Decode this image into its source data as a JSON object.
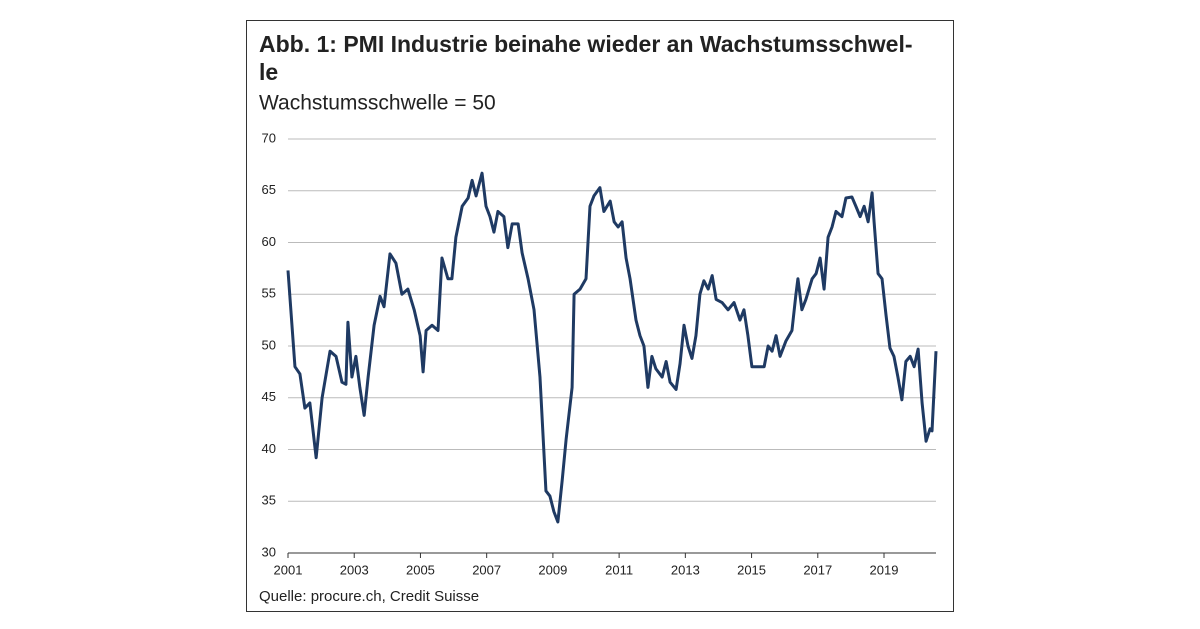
{
  "chart_data": {
    "type": "line",
    "title_lines": [
      "Abb. 1: PMI Industrie beinahe wieder an Wachstumsschwel-",
      "le"
    ],
    "subtitle": "Wachstumsschwelle = 50",
    "source": "Quelle: procure.ch, Credit Suisse",
    "xlim": [
      2001,
      2020.57
    ],
    "xticks": [
      2001,
      2003,
      2005,
      2007,
      2009,
      2011,
      2013,
      2015,
      2017,
      2019
    ],
    "ylim": [
      30,
      70
    ],
    "yticks": [
      30,
      35,
      40,
      45,
      50,
      55,
      60,
      65,
      70
    ],
    "grid": true,
    "series": [
      {
        "color": "#1f3a63",
        "x": [
          2001.0,
          2001.21,
          2001.36,
          2001.51,
          2001.66,
          2001.85,
          2002.03,
          2002.27,
          2002.45,
          2002.63,
          2002.75,
          2002.81,
          2002.93,
          2003.05,
          2003.17,
          2003.3,
          2003.42,
          2003.6,
          2003.78,
          2003.9,
          2004.08,
          2004.26,
          2004.44,
          2004.62,
          2004.81,
          2004.99,
          2005.08,
          2005.17,
          2005.35,
          2005.53,
          2005.65,
          2005.83,
          2005.95,
          2006.07,
          2006.26,
          2006.44,
          2006.56,
          2006.68,
          2006.86,
          2006.98,
          2007.1,
          2007.22,
          2007.34,
          2007.52,
          2007.64,
          2007.77,
          2007.95,
          2008.07,
          2008.25,
          2008.43,
          2008.61,
          2008.79,
          2008.91,
          2009.03,
          2009.15,
          2009.28,
          2009.4,
          2009.58,
          2009.64,
          2009.82,
          2010.0,
          2010.12,
          2010.24,
          2010.42,
          2010.54,
          2010.73,
          2010.85,
          2010.97,
          2011.09,
          2011.21,
          2011.33,
          2011.51,
          2011.63,
          2011.75,
          2011.87,
          2011.99,
          2012.11,
          2012.3,
          2012.42,
          2012.54,
          2012.72,
          2012.84,
          2012.96,
          2013.08,
          2013.2,
          2013.32,
          2013.44,
          2013.56,
          2013.69,
          2013.81,
          2013.93,
          2014.11,
          2014.29,
          2014.47,
          2014.65,
          2014.77,
          2014.89,
          2015.01,
          2015.2,
          2015.38,
          2015.5,
          2015.62,
          2015.74,
          2015.86,
          2016.04,
          2016.22,
          2016.34,
          2016.4,
          2016.52,
          2016.64,
          2016.83,
          2016.95,
          2017.07,
          2017.19,
          2017.31,
          2017.43,
          2017.55,
          2017.73,
          2017.85,
          2018.03,
          2018.15,
          2018.28,
          2018.4,
          2018.52,
          2018.64,
          2018.7,
          2018.82,
          2018.94,
          2019.06,
          2019.18,
          2019.3,
          2019.42,
          2019.54,
          2019.66,
          2019.79,
          2019.91,
          2020.03,
          2020.15,
          2020.27,
          2020.39,
          2020.45,
          2020.57
        ],
        "values": [
          57.3,
          48,
          47.3,
          44,
          44.5,
          39.2,
          45,
          49.5,
          49,
          46.5,
          46.3,
          52.3,
          47,
          49,
          46,
          43.3,
          47,
          52,
          54.8,
          53.8,
          58.9,
          58,
          55,
          55.5,
          53.5,
          51,
          47.5,
          51.5,
          52,
          51.5,
          58.5,
          56.5,
          56.5,
          60.5,
          63.5,
          64.3,
          66,
          64.5,
          66.7,
          63.5,
          62.5,
          61,
          63,
          62.5,
          59.5,
          61.8,
          61.8,
          59,
          56.5,
          53.5,
          47,
          36,
          35.5,
          34,
          33,
          37,
          41,
          46,
          55,
          55.5,
          56.5,
          63.5,
          64.5,
          65.3,
          63,
          64,
          62,
          61.5,
          62,
          58.5,
          56.5,
          52.5,
          51,
          50,
          46,
          49,
          47.8,
          47,
          48.5,
          46.5,
          45.8,
          48.3,
          52,
          50,
          48.8,
          51,
          55,
          56.3,
          55.5,
          56.8,
          54.5,
          54.2,
          53.5,
          54.2,
          52.5,
          53.5,
          51,
          48,
          48,
          48,
          50,
          49.5,
          51,
          49,
          50.5,
          51.5,
          55,
          56.5,
          53.5,
          54.5,
          56.5,
          57,
          58.5,
          55.5,
          60.5,
          61.5,
          63,
          62.5,
          64.3,
          64.4,
          63.5,
          62.5,
          63.5,
          62,
          64.8,
          62,
          57,
          56.5,
          53,
          49.8,
          49,
          47,
          44.8,
          48.5,
          49,
          48,
          49.7,
          44.5,
          40.8,
          42,
          41.8,
          49.5
        ]
      }
    ]
  }
}
